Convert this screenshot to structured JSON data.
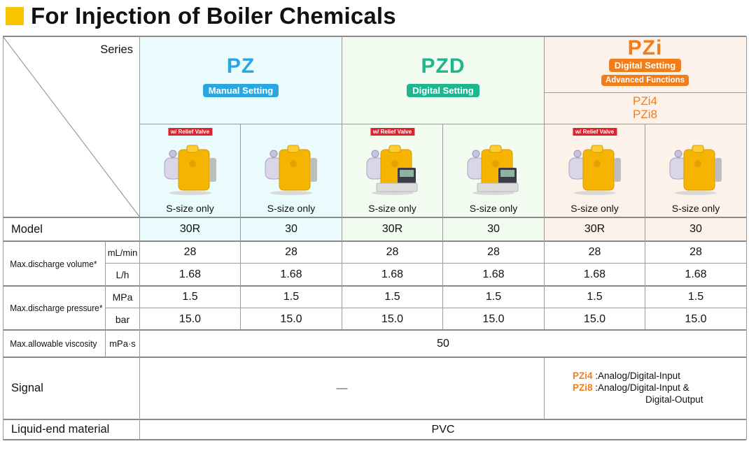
{
  "title": "For Injection of Boiler Chemicals",
  "header": {
    "series_label": "Series",
    "pz": {
      "name": "PZ",
      "badge": "Manual Setting",
      "color": "#2aa7e0"
    },
    "pzd": {
      "name": "PZD",
      "badge": "Digital Setting",
      "color": "#1fb58f"
    },
    "pzi": {
      "name": "PZi",
      "badge1": "Digital Setting",
      "badge2": "Advanced Functions",
      "models_line1": "PZi4",
      "models_line2": "PZi8",
      "color": "#f07d1a"
    }
  },
  "pumps": {
    "relief_label": "w/ Relief Valve",
    "caption": "S-size only"
  },
  "rows": {
    "model": {
      "label": "Model",
      "values": [
        "30R",
        "30",
        "30R",
        "30",
        "30R",
        "30"
      ]
    },
    "discharge_volume": {
      "label": "Max.discharge volume*",
      "unit1": "mL/min",
      "values1": [
        "28",
        "28",
        "28",
        "28",
        "28",
        "28"
      ],
      "unit2": "L/h",
      "values2": [
        "1.68",
        "1.68",
        "1.68",
        "1.68",
        "1.68",
        "1.68"
      ]
    },
    "discharge_pressure": {
      "label": "Max.discharge pressure*",
      "unit1": "MPa",
      "values1": [
        "1.5",
        "1.5",
        "1.5",
        "1.5",
        "1.5",
        "1.5"
      ],
      "unit2": "bar",
      "values2": [
        "15.0",
        "15.0",
        "15.0",
        "15.0",
        "15.0",
        "15.0"
      ]
    },
    "viscosity": {
      "label": "Max.allowable viscosity",
      "unit": "mPa·s",
      "value": "50"
    },
    "signal": {
      "label": "Signal",
      "pz_pzd": "—",
      "pzi4_name": "PZi4",
      "pzi4_text": ":Analog/Digital-Input",
      "pzi8_name": "PZi8",
      "pzi8_text": ":Analog/Digital-Input &",
      "pzi8_text2": "Digital-Output"
    },
    "liquid_end": {
      "label": "Liquid-end material",
      "value": "PVC"
    }
  }
}
